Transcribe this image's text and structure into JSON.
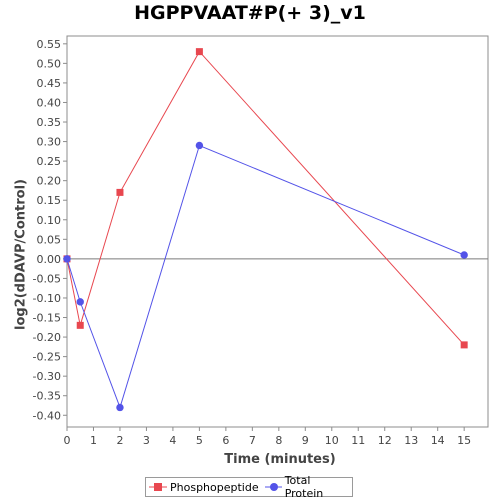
{
  "chart_data": {
    "type": "line",
    "title": "HGPPVAAT#P(+ 3)_v1",
    "xlabel": "Time (minutes)",
    "ylabel": "log2(dDAVP/Control)",
    "xlim": [
      0,
      15.9
    ],
    "ylim": [
      -0.43,
      0.57
    ],
    "x_ticks": [
      0,
      1,
      2,
      3,
      4,
      5,
      6,
      7,
      8,
      9,
      10,
      11,
      12,
      13,
      14,
      15
    ],
    "y_ticks": [
      0.55,
      0.5,
      0.45,
      0.4,
      0.35,
      0.3,
      0.25,
      0.2,
      0.15,
      0.1,
      0.05,
      0.0,
      -0.05,
      -0.1,
      -0.15,
      -0.2,
      -0.25,
      -0.3,
      -0.35,
      -0.4
    ],
    "y_tick_labels": [
      "0.55",
      "0.50",
      "0.45",
      "0.40",
      "0.35",
      "0.30",
      "0.25",
      "0.20",
      "0.15",
      "0.10",
      "0.05",
      "0.00",
      "-0.05",
      "-0.10",
      "-0.15",
      "-0.20",
      "-0.25",
      "-0.30",
      "-0.35",
      "-0.40"
    ],
    "zero_line": true,
    "grid": false,
    "legend_position": "bottom",
    "series": [
      {
        "name": "Phosphopeptide",
        "color": "#e8474f",
        "marker": "square",
        "x": [
          0,
          0.5,
          2,
          5,
          15
        ],
        "y": [
          0.0,
          -0.17,
          0.17,
          0.53,
          -0.22
        ]
      },
      {
        "name": "Total Protein",
        "color": "#5353e8",
        "marker": "circle",
        "x": [
          0,
          0.5,
          2,
          5,
          15
        ],
        "y": [
          0.0,
          -0.11,
          -0.38,
          0.29,
          0.01
        ]
      }
    ]
  }
}
